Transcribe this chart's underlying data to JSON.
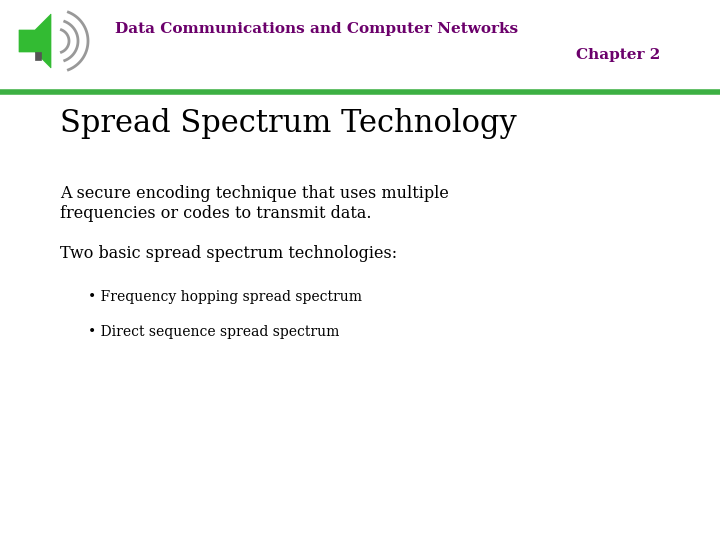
{
  "slide_bg": "#ffffff",
  "header_line1": "Data Communications and Computer Networks",
  "header_line2": "Chapter 2",
  "header_text_color": "#6b006b",
  "green_line_color": "#3cb043",
  "slide_title": "Spread Spectrum Technology",
  "slide_title_color": "#000000",
  "body_text_color": "#000000",
  "para1_line1": "A secure encoding technique that uses multiple",
  "para1_line2": "frequencies or codes to transmit data.",
  "para2": "Two basic spread spectrum technologies:",
  "bullet1": "• Frequency hopping spread spectrum",
  "bullet2": "• Direct sequence spread spectrum",
  "speaker_green": "#33bb33",
  "speaker_gray": "#999999",
  "speaker_dark": "#555555",
  "header_fontsize": 11,
  "title_fontsize": 22,
  "body_fontsize": 11.5,
  "bullet_fontsize": 10
}
